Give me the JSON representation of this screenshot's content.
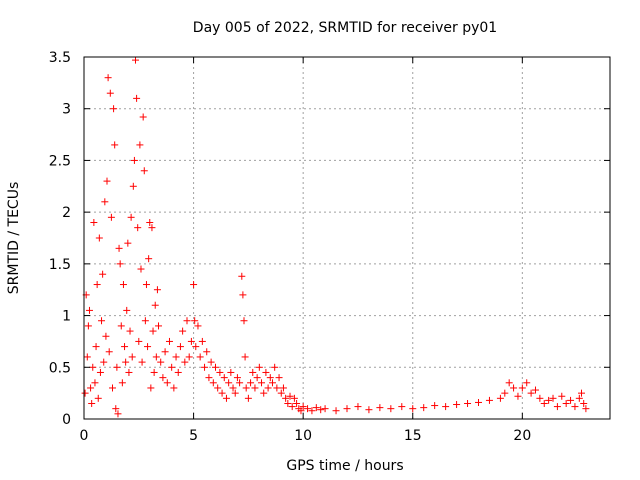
{
  "chart_data": {
    "type": "scatter",
    "title": "Day 005 of 2022, SRMTID for receiver py01",
    "xlabel": "GPS time / hours",
    "ylabel": "SRMTID / TECUs",
    "xlim": [
      0,
      24
    ],
    "ylim": [
      0,
      3.5
    ],
    "x_ticks": [
      0,
      5,
      10,
      15,
      20
    ],
    "x_tick_labels": [
      "0",
      "5",
      "10",
      "15",
      "20"
    ],
    "y_ticks": [
      0,
      0.5,
      1,
      1.5,
      2,
      2.5,
      3,
      3.5
    ],
    "y_tick_labels": [
      "0",
      "0.5",
      "1",
      "1.5",
      "2",
      "2.5",
      "3",
      "3.5"
    ],
    "grid": true,
    "marker": "+",
    "color": "#ff0000",
    "series": [
      {
        "name": "SRMTID",
        "points": [
          [
            0.05,
            0.25
          ],
          [
            0.1,
            1.2
          ],
          [
            0.15,
            0.6
          ],
          [
            0.2,
            0.9
          ],
          [
            0.25,
            1.05
          ],
          [
            0.3,
            0.3
          ],
          [
            0.35,
            0.15
          ],
          [
            0.4,
            0.5
          ],
          [
            0.45,
            1.9
          ],
          [
            0.5,
            0.35
          ],
          [
            0.55,
            0.7
          ],
          [
            0.6,
            1.3
          ],
          [
            0.65,
            0.2
          ],
          [
            0.7,
            1.75
          ],
          [
            0.75,
            0.45
          ],
          [
            0.8,
            0.95
          ],
          [
            0.85,
            1.4
          ],
          [
            0.9,
            0.55
          ],
          [
            0.95,
            2.1
          ],
          [
            1.0,
            0.8
          ],
          [
            1.05,
            2.3
          ],
          [
            1.1,
            3.3
          ],
          [
            1.15,
            0.65
          ],
          [
            1.2,
            3.15
          ],
          [
            1.25,
            1.95
          ],
          [
            1.3,
            0.3
          ],
          [
            1.35,
            3.0
          ],
          [
            1.4,
            2.65
          ],
          [
            1.45,
            0.1
          ],
          [
            1.5,
            0.5
          ],
          [
            1.55,
            0.05
          ],
          [
            1.6,
            1.65
          ],
          [
            1.65,
            1.5
          ],
          [
            1.7,
            0.9
          ],
          [
            1.75,
            0.35
          ],
          [
            1.8,
            1.3
          ],
          [
            1.85,
            0.7
          ],
          [
            1.9,
            0.55
          ],
          [
            1.95,
            1.05
          ],
          [
            2.0,
            1.7
          ],
          [
            2.05,
            0.45
          ],
          [
            2.1,
            0.85
          ],
          [
            2.15,
            1.95
          ],
          [
            2.2,
            0.6
          ],
          [
            2.25,
            2.25
          ],
          [
            2.3,
            2.5
          ],
          [
            2.35,
            3.47
          ],
          [
            2.4,
            3.1
          ],
          [
            2.45,
            1.85
          ],
          [
            2.5,
            0.75
          ],
          [
            2.55,
            2.65
          ],
          [
            2.6,
            1.45
          ],
          [
            2.65,
            0.55
          ],
          [
            2.7,
            2.92
          ],
          [
            2.75,
            2.4
          ],
          [
            2.8,
            0.95
          ],
          [
            2.85,
            1.3
          ],
          [
            2.9,
            0.7
          ],
          [
            2.95,
            1.55
          ],
          [
            3.0,
            1.9
          ],
          [
            3.05,
            0.3
          ],
          [
            3.1,
            1.85
          ],
          [
            3.15,
            0.85
          ],
          [
            3.2,
            0.45
          ],
          [
            3.25,
            1.1
          ],
          [
            3.3,
            0.6
          ],
          [
            3.35,
            1.25
          ],
          [
            3.4,
            0.9
          ],
          [
            3.5,
            0.55
          ],
          [
            3.6,
            0.4
          ],
          [
            3.7,
            0.65
          ],
          [
            3.8,
            0.35
          ],
          [
            3.9,
            0.75
          ],
          [
            4.0,
            0.5
          ],
          [
            4.1,
            0.3
          ],
          [
            4.2,
            0.6
          ],
          [
            4.3,
            0.45
          ],
          [
            4.4,
            0.7
          ],
          [
            4.5,
            0.85
          ],
          [
            4.6,
            0.55
          ],
          [
            4.7,
            0.95
          ],
          [
            4.8,
            0.6
          ],
          [
            4.9,
            0.75
          ],
          [
            5.0,
            1.3
          ],
          [
            5.05,
            0.95
          ],
          [
            5.1,
            0.7
          ],
          [
            5.2,
            0.9
          ],
          [
            5.3,
            0.6
          ],
          [
            5.4,
            0.75
          ],
          [
            5.5,
            0.5
          ],
          [
            5.6,
            0.65
          ],
          [
            5.7,
            0.4
          ],
          [
            5.8,
            0.55
          ],
          [
            5.9,
            0.35
          ],
          [
            6.0,
            0.5
          ],
          [
            6.1,
            0.3
          ],
          [
            6.2,
            0.45
          ],
          [
            6.3,
            0.25
          ],
          [
            6.4,
            0.4
          ],
          [
            6.5,
            0.2
          ],
          [
            6.6,
            0.35
          ],
          [
            6.7,
            0.45
          ],
          [
            6.8,
            0.3
          ],
          [
            6.9,
            0.25
          ],
          [
            7.0,
            0.4
          ],
          [
            7.1,
            0.35
          ],
          [
            7.2,
            1.38
          ],
          [
            7.25,
            1.2
          ],
          [
            7.3,
            0.95
          ],
          [
            7.35,
            0.6
          ],
          [
            7.4,
            0.3
          ],
          [
            7.5,
            0.2
          ],
          [
            7.6,
            0.35
          ],
          [
            7.7,
            0.45
          ],
          [
            7.8,
            0.3
          ],
          [
            7.9,
            0.4
          ],
          [
            8.0,
            0.5
          ],
          [
            8.1,
            0.35
          ],
          [
            8.2,
            0.25
          ],
          [
            8.3,
            0.45
          ],
          [
            8.4,
            0.3
          ],
          [
            8.5,
            0.4
          ],
          [
            8.6,
            0.35
          ],
          [
            8.7,
            0.5
          ],
          [
            8.8,
            0.3
          ],
          [
            8.9,
            0.4
          ],
          [
            9.0,
            0.25
          ],
          [
            9.1,
            0.3
          ],
          [
            9.2,
            0.2
          ],
          [
            9.3,
            0.15
          ],
          [
            9.4,
            0.22
          ],
          [
            9.5,
            0.12
          ],
          [
            9.6,
            0.2
          ],
          [
            9.7,
            0.15
          ],
          [
            9.8,
            0.1
          ],
          [
            9.9,
            0.08
          ],
          [
            10.0,
            0.12
          ],
          [
            10.2,
            0.1
          ],
          [
            10.4,
            0.08
          ],
          [
            10.6,
            0.11
          ],
          [
            10.8,
            0.09
          ],
          [
            11.0,
            0.1
          ],
          [
            11.5,
            0.08
          ],
          [
            12.0,
            0.1
          ],
          [
            12.5,
            0.12
          ],
          [
            13.0,
            0.09
          ],
          [
            13.5,
            0.11
          ],
          [
            14.0,
            0.1
          ],
          [
            14.5,
            0.12
          ],
          [
            15.0,
            0.1
          ],
          [
            15.5,
            0.11
          ],
          [
            16.0,
            0.13
          ],
          [
            16.5,
            0.12
          ],
          [
            17.0,
            0.14
          ],
          [
            17.5,
            0.15
          ],
          [
            18.0,
            0.16
          ],
          [
            18.5,
            0.18
          ],
          [
            19.0,
            0.2
          ],
          [
            19.2,
            0.25
          ],
          [
            19.4,
            0.35
          ],
          [
            19.6,
            0.3
          ],
          [
            19.8,
            0.22
          ],
          [
            20.0,
            0.3
          ],
          [
            20.2,
            0.35
          ],
          [
            20.4,
            0.25
          ],
          [
            20.6,
            0.28
          ],
          [
            20.8,
            0.2
          ],
          [
            21.0,
            0.15
          ],
          [
            21.2,
            0.18
          ],
          [
            21.4,
            0.2
          ],
          [
            21.6,
            0.12
          ],
          [
            21.8,
            0.22
          ],
          [
            22.0,
            0.15
          ],
          [
            22.2,
            0.18
          ],
          [
            22.4,
            0.12
          ],
          [
            22.6,
            0.2
          ],
          [
            22.7,
            0.25
          ],
          [
            22.8,
            0.15
          ],
          [
            22.9,
            0.1
          ]
        ]
      }
    ]
  }
}
